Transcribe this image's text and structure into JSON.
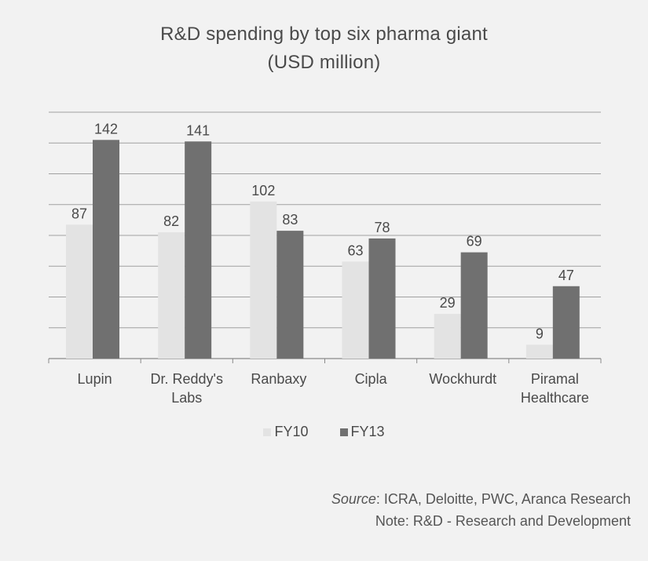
{
  "chart_data": {
    "type": "bar",
    "title": "R&D spending by top six pharma giant",
    "subtitle": "(USD million)",
    "categories": [
      "Lupin",
      "Dr. Reddy's Labs",
      "Ranbaxy",
      "Cipla",
      "Wockhurdt",
      "Piramal Healthcare"
    ],
    "category_lines": [
      [
        "Lupin"
      ],
      [
        "Dr. Reddy's",
        "Labs"
      ],
      [
        "Ranbaxy"
      ],
      [
        "Cipla"
      ],
      [
        "Wockhurdt"
      ],
      [
        "Piramal",
        "Healthcare"
      ]
    ],
    "series": [
      {
        "name": "FY10",
        "values": [
          87,
          82,
          102,
          63,
          29,
          9
        ],
        "color": "#e3e3e3"
      },
      {
        "name": "FY13",
        "values": [
          142,
          141,
          83,
          78,
          69,
          47
        ],
        "color": "#707070"
      }
    ],
    "ylim": [
      0,
      160
    ],
    "grid": true,
    "legend_position": "bottom",
    "source_label": "Source",
    "source_text": ": ICRA, Deloitte, PWC, Aranca Research",
    "note": "Note: R&D - Research and Development"
  }
}
